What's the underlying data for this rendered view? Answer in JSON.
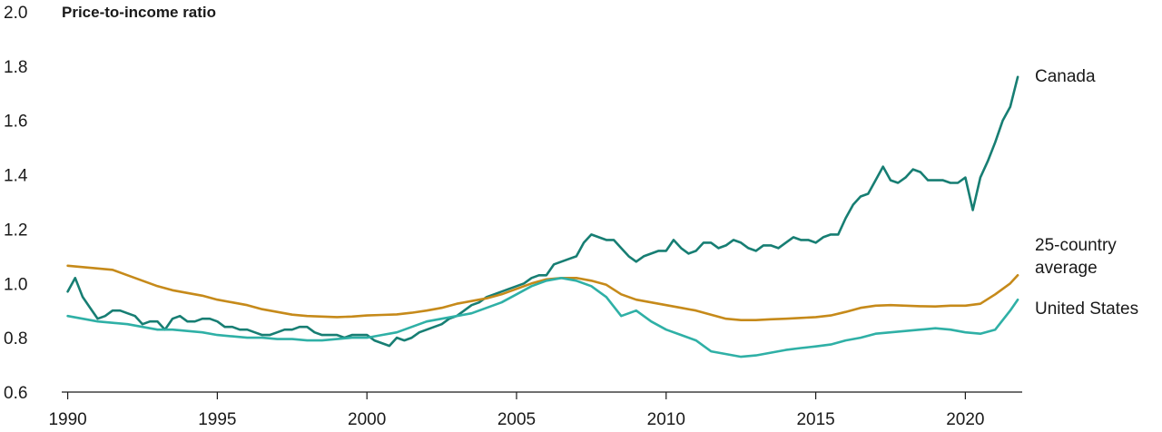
{
  "chart_data": {
    "type": "line",
    "ylabel": "Price-to-income ratio",
    "xlim": [
      1989.8,
      2021.9
    ],
    "ylim": [
      0.6,
      2.0
    ],
    "xticks": [
      "1990",
      "1995",
      "2000",
      "2005",
      "2010",
      "2015",
      "2020"
    ],
    "yticks": [
      "0.6",
      "0.8",
      "1.0",
      "1.2",
      "1.4",
      "1.6",
      "1.8",
      "2.0"
    ],
    "grid": false,
    "legend": "direct labels at right end of lines",
    "series": [
      {
        "name": "Canada",
        "label_lines": [
          "Canada"
        ],
        "color": "#177e73",
        "x": [
          1990.0,
          1990.25,
          1990.5,
          1990.75,
          1991.0,
          1991.25,
          1991.5,
          1991.75,
          1992.0,
          1992.25,
          1992.5,
          1992.75,
          1993.0,
          1993.25,
          1993.5,
          1993.75,
          1994.0,
          1994.25,
          1994.5,
          1994.75,
          1995.0,
          1995.25,
          1995.5,
          1995.75,
          1996.0,
          1996.25,
          1996.5,
          1996.75,
          1997.0,
          1997.25,
          1997.5,
          1997.75,
          1998.0,
          1998.25,
          1998.5,
          1998.75,
          1999.0,
          1999.25,
          1999.5,
          1999.75,
          2000.0,
          2000.25,
          2000.5,
          2000.75,
          2001.0,
          2001.25,
          2001.5,
          2001.75,
          2002.0,
          2002.25,
          2002.5,
          2002.75,
          2003.0,
          2003.25,
          2003.5,
          2003.75,
          2004.0,
          2004.25,
          2004.5,
          2004.75,
          2005.0,
          2005.25,
          2005.5,
          2005.75,
          2006.0,
          2006.25,
          2006.5,
          2006.75,
          2007.0,
          2007.25,
          2007.5,
          2007.75,
          2008.0,
          2008.25,
          2008.5,
          2008.75,
          2009.0,
          2009.25,
          2009.5,
          2009.75,
          2010.0,
          2010.25,
          2010.5,
          2010.75,
          2011.0,
          2011.25,
          2011.5,
          2011.75,
          2012.0,
          2012.25,
          2012.5,
          2012.75,
          2013.0,
          2013.25,
          2013.5,
          2013.75,
          2014.0,
          2014.25,
          2014.5,
          2014.75,
          2015.0,
          2015.25,
          2015.5,
          2015.75,
          2016.0,
          2016.25,
          2016.5,
          2016.75,
          2017.0,
          2017.25,
          2017.5,
          2017.75,
          2018.0,
          2018.25,
          2018.5,
          2018.75,
          2019.0,
          2019.25,
          2019.5,
          2019.75,
          2020.0,
          2020.25,
          2020.5,
          2020.75,
          2021.0,
          2021.25,
          2021.5,
          2021.75
        ],
        "values": [
          0.97,
          1.02,
          0.95,
          0.91,
          0.87,
          0.88,
          0.9,
          0.9,
          0.89,
          0.88,
          0.85,
          0.86,
          0.86,
          0.83,
          0.87,
          0.88,
          0.86,
          0.86,
          0.87,
          0.87,
          0.86,
          0.84,
          0.84,
          0.83,
          0.83,
          0.82,
          0.81,
          0.81,
          0.82,
          0.83,
          0.83,
          0.84,
          0.84,
          0.82,
          0.81,
          0.81,
          0.81,
          0.8,
          0.81,
          0.81,
          0.81,
          0.79,
          0.78,
          0.77,
          0.8,
          0.79,
          0.8,
          0.82,
          0.83,
          0.84,
          0.85,
          0.87,
          0.88,
          0.9,
          0.92,
          0.93,
          0.95,
          0.96,
          0.97,
          0.98,
          0.99,
          1.0,
          1.02,
          1.03,
          1.03,
          1.07,
          1.08,
          1.09,
          1.1,
          1.15,
          1.18,
          1.17,
          1.16,
          1.16,
          1.13,
          1.1,
          1.08,
          1.1,
          1.11,
          1.12,
          1.12,
          1.16,
          1.13,
          1.11,
          1.12,
          1.15,
          1.15,
          1.13,
          1.14,
          1.16,
          1.15,
          1.13,
          1.12,
          1.14,
          1.14,
          1.13,
          1.15,
          1.17,
          1.16,
          1.16,
          1.15,
          1.17,
          1.18,
          1.18,
          1.24,
          1.29,
          1.32,
          1.33,
          1.38,
          1.43,
          1.38,
          1.37,
          1.39,
          1.42,
          1.41,
          1.38,
          1.38,
          1.38,
          1.37,
          1.37,
          1.39,
          1.27,
          1.39,
          1.45,
          1.52,
          1.6,
          1.65,
          1.76
        ]
      },
      {
        "name": "25-country average",
        "label_lines": [
          "25-country",
          "average"
        ],
        "color": "#c68a1a",
        "x": [
          1990.0,
          1990.5,
          1991.0,
          1991.5,
          1992.0,
          1992.5,
          1993.0,
          1993.5,
          1994.0,
          1994.5,
          1995.0,
          1995.5,
          1996.0,
          1996.5,
          1997.0,
          1997.5,
          1998.0,
          1998.5,
          1999.0,
          1999.5,
          2000.0,
          2000.5,
          2001.0,
          2001.5,
          2002.0,
          2002.5,
          2003.0,
          2003.5,
          2004.0,
          2004.5,
          2005.0,
          2005.5,
          2006.0,
          2006.5,
          2007.0,
          2007.5,
          2008.0,
          2008.5,
          2009.0,
          2009.5,
          2010.0,
          2010.5,
          2011.0,
          2011.5,
          2012.0,
          2012.5,
          2013.0,
          2013.5,
          2014.0,
          2014.5,
          2015.0,
          2015.5,
          2016.0,
          2016.5,
          2017.0,
          2017.5,
          2018.0,
          2018.5,
          2019.0,
          2019.5,
          2020.0,
          2020.5,
          2021.0,
          2021.5,
          2021.75
        ],
        "values": [
          1.065,
          1.06,
          1.055,
          1.05,
          1.03,
          1.01,
          0.99,
          0.975,
          0.965,
          0.955,
          0.94,
          0.93,
          0.92,
          0.905,
          0.895,
          0.885,
          0.88,
          0.878,
          0.876,
          0.878,
          0.882,
          0.884,
          0.886,
          0.892,
          0.9,
          0.91,
          0.925,
          0.935,
          0.945,
          0.96,
          0.98,
          1.0,
          1.015,
          1.02,
          1.02,
          1.01,
          0.995,
          0.96,
          0.94,
          0.93,
          0.92,
          0.91,
          0.9,
          0.885,
          0.87,
          0.865,
          0.865,
          0.868,
          0.87,
          0.873,
          0.876,
          0.882,
          0.895,
          0.91,
          0.918,
          0.92,
          0.918,
          0.916,
          0.915,
          0.918,
          0.918,
          0.925,
          0.96,
          1.0,
          1.03
        ]
      },
      {
        "name": "United States",
        "label_lines": [
          "United States"
        ],
        "color": "#2fb0a6",
        "x": [
          1990.0,
          1990.5,
          1991.0,
          1991.5,
          1992.0,
          1992.5,
          1993.0,
          1993.5,
          1994.0,
          1994.5,
          1995.0,
          1995.5,
          1996.0,
          1996.5,
          1997.0,
          1997.5,
          1998.0,
          1998.5,
          1999.0,
          1999.5,
          2000.0,
          2000.5,
          2001.0,
          2001.5,
          2002.0,
          2002.5,
          2003.0,
          2003.5,
          2004.0,
          2004.5,
          2005.0,
          2005.5,
          2006.0,
          2006.5,
          2007.0,
          2007.5,
          2008.0,
          2008.5,
          2008.75,
          2009.0,
          2009.5,
          2010.0,
          2010.5,
          2011.0,
          2011.5,
          2012.0,
          2012.5,
          2013.0,
          2013.5,
          2014.0,
          2014.5,
          2015.0,
          2015.5,
          2016.0,
          2016.5,
          2017.0,
          2017.5,
          2018.0,
          2018.5,
          2019.0,
          2019.5,
          2020.0,
          2020.5,
          2021.0,
          2021.5,
          2021.75
        ],
        "values": [
          0.88,
          0.87,
          0.86,
          0.855,
          0.85,
          0.84,
          0.83,
          0.83,
          0.825,
          0.82,
          0.81,
          0.805,
          0.8,
          0.8,
          0.795,
          0.795,
          0.79,
          0.79,
          0.795,
          0.8,
          0.8,
          0.81,
          0.82,
          0.84,
          0.86,
          0.87,
          0.88,
          0.89,
          0.91,
          0.93,
          0.96,
          0.99,
          1.01,
          1.02,
          1.01,
          0.99,
          0.95,
          0.88,
          0.89,
          0.9,
          0.86,
          0.83,
          0.81,
          0.79,
          0.75,
          0.74,
          0.73,
          0.735,
          0.745,
          0.755,
          0.762,
          0.768,
          0.775,
          0.79,
          0.8,
          0.815,
          0.82,
          0.825,
          0.83,
          0.835,
          0.83,
          0.82,
          0.815,
          0.83,
          0.9,
          0.94
        ]
      }
    ]
  }
}
